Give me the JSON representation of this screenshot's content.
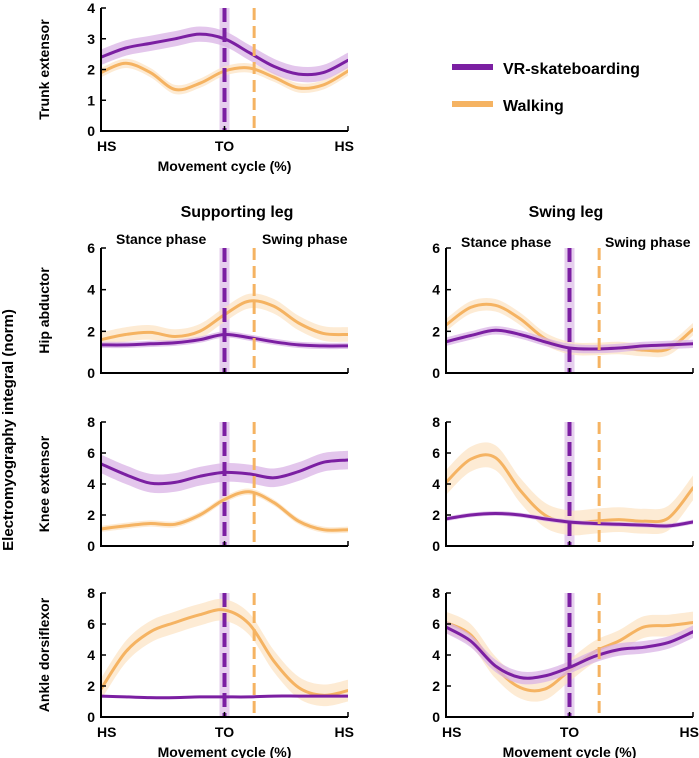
{
  "figure": {
    "y_axis_label": "Electromyography integral (norm)",
    "legend": [
      {
        "label": "VR-skateboarding",
        "color": "#7B1FA2"
      },
      {
        "label": "Walking",
        "color": "#F5B362"
      }
    ],
    "column_titles": [
      "Supporting leg",
      "Swing leg"
    ],
    "phase_labels": [
      "Stance phase",
      "Swing phase"
    ],
    "x_tick_labels": [
      "HS",
      "TO",
      "HS"
    ],
    "x_axis_label": "Movement cycle (%)",
    "colors": {
      "skate": "#7B1FA2",
      "skate_band": "#D9B3E6",
      "walk": "#F5B362",
      "walk_band": "#FCE3C2",
      "skate_to_band": "#E6CFEE"
    }
  },
  "chart_data": [
    {
      "id": "trunk",
      "type": "line",
      "title": "Trunk extensor",
      "xlabel": "Movement cycle (%)",
      "xlim": [
        0,
        100
      ],
      "ylim": [
        0,
        4
      ],
      "yticks": [
        0,
        1,
        2,
        3,
        4
      ],
      "x": [
        0,
        10,
        20,
        30,
        40,
        50,
        60,
        70,
        80,
        90,
        100
      ],
      "to_skate": 50,
      "to_walk": 62,
      "series": [
        {
          "name": "VR-skateboarding",
          "values": [
            2.4,
            2.7,
            2.85,
            3.0,
            3.15,
            3.0,
            2.55,
            2.1,
            1.85,
            1.9,
            2.3
          ],
          "sd": 0.25
        },
        {
          "name": "Walking",
          "values": [
            1.9,
            2.2,
            1.9,
            1.35,
            1.55,
            1.95,
            2.05,
            1.75,
            1.4,
            1.5,
            1.95
          ],
          "sd": 0.15
        }
      ]
    },
    {
      "id": "hip-sup",
      "type": "line",
      "title": "Hip abductor",
      "xlim": [
        0,
        100
      ],
      "ylim": [
        0,
        6
      ],
      "yticks": [
        0,
        2,
        4,
        6
      ],
      "x": [
        0,
        10,
        20,
        30,
        40,
        50,
        60,
        70,
        80,
        90,
        100
      ],
      "to_skate": 50,
      "to_walk": 62,
      "series": [
        {
          "name": "VR-skateboarding",
          "values": [
            1.35,
            1.35,
            1.4,
            1.45,
            1.6,
            1.85,
            1.7,
            1.5,
            1.35,
            1.3,
            1.3
          ],
          "sd": 0.15
        },
        {
          "name": "Walking",
          "values": [
            1.6,
            1.85,
            1.95,
            1.75,
            2.0,
            2.8,
            3.45,
            3.2,
            2.4,
            1.9,
            1.85
          ],
          "sd": 0.35
        }
      ]
    },
    {
      "id": "hip-swing",
      "type": "line",
      "title": "",
      "xlim": [
        0,
        100
      ],
      "ylim": [
        0,
        6
      ],
      "yticks": [
        0,
        2,
        4,
        6
      ],
      "x": [
        0,
        10,
        20,
        30,
        40,
        50,
        60,
        70,
        80,
        90,
        100
      ],
      "to_skate": 50,
      "to_walk": 62,
      "series": [
        {
          "name": "VR-skateboarding",
          "values": [
            1.5,
            1.8,
            2.05,
            1.85,
            1.5,
            1.2,
            1.15,
            1.2,
            1.3,
            1.35,
            1.4
          ],
          "sd": 0.2
        },
        {
          "name": "Walking",
          "values": [
            2.3,
            3.15,
            3.25,
            2.6,
            1.65,
            1.2,
            1.15,
            1.2,
            1.1,
            1.15,
            2.1
          ],
          "sd": 0.3
        }
      ]
    },
    {
      "id": "knee-sup",
      "type": "line",
      "title": "Knee extensor",
      "xlim": [
        0,
        100
      ],
      "ylim": [
        0,
        8
      ],
      "yticks": [
        0,
        2,
        4,
        6,
        8
      ],
      "x": [
        0,
        10,
        20,
        30,
        40,
        50,
        60,
        70,
        80,
        90,
        100
      ],
      "to_skate": 50,
      "to_walk": 62,
      "series": [
        {
          "name": "VR-skateboarding",
          "values": [
            5.3,
            4.6,
            4.05,
            4.1,
            4.5,
            4.75,
            4.65,
            4.4,
            4.8,
            5.4,
            5.55
          ],
          "sd": 0.6
        },
        {
          "name": "Walking",
          "values": [
            1.1,
            1.3,
            1.45,
            1.4,
            2.0,
            3.0,
            3.5,
            2.8,
            1.6,
            1.05,
            1.05
          ],
          "sd": 0.2
        }
      ]
    },
    {
      "id": "knee-swing",
      "type": "line",
      "title": "",
      "xlim": [
        0,
        100
      ],
      "ylim": [
        0,
        8
      ],
      "yticks": [
        0,
        2,
        4,
        6,
        8
      ],
      "x": [
        0,
        10,
        20,
        30,
        40,
        50,
        60,
        70,
        80,
        90,
        100
      ],
      "to_skate": 50,
      "to_walk": 62,
      "series": [
        {
          "name": "VR-skateboarding",
          "values": [
            1.75,
            2.0,
            2.1,
            2.0,
            1.75,
            1.55,
            1.45,
            1.4,
            1.35,
            1.3,
            1.55
          ],
          "sd": 0.15
        },
        {
          "name": "Walking",
          "values": [
            4.1,
            5.6,
            5.7,
            3.6,
            2.0,
            1.5,
            1.6,
            1.7,
            1.6,
            1.8,
            3.75
          ],
          "sd": 0.8
        }
      ]
    },
    {
      "id": "ankle-sup",
      "type": "line",
      "title": "Ankle dorsiflexor",
      "xlabel": "Movement cycle (%)",
      "xlim": [
        0,
        100
      ],
      "ylim": [
        0,
        8
      ],
      "yticks": [
        0,
        2,
        4,
        6,
        8
      ],
      "x": [
        0,
        10,
        20,
        30,
        40,
        50,
        60,
        70,
        80,
        90,
        100
      ],
      "to_skate": 50,
      "to_walk": 62,
      "series": [
        {
          "name": "VR-skateboarding",
          "values": [
            1.35,
            1.3,
            1.25,
            1.25,
            1.3,
            1.3,
            1.3,
            1.35,
            1.35,
            1.35,
            1.35
          ],
          "sd": 0.05
        },
        {
          "name": "Walking",
          "values": [
            1.8,
            4.2,
            5.5,
            6.1,
            6.6,
            6.9,
            6.0,
            3.6,
            1.9,
            1.4,
            1.7
          ],
          "sd": 0.7
        }
      ]
    },
    {
      "id": "ankle-swing",
      "type": "line",
      "title": "",
      "xlabel": "Movement cycle (%)",
      "xlim": [
        0,
        100
      ],
      "ylim": [
        0,
        8
      ],
      "yticks": [
        0,
        2,
        4,
        6,
        8
      ],
      "x": [
        0,
        10,
        20,
        30,
        40,
        50,
        60,
        70,
        80,
        90,
        100
      ],
      "to_skate": 50,
      "to_walk": 62,
      "series": [
        {
          "name": "VR-skateboarding",
          "values": [
            5.8,
            4.9,
            3.3,
            2.55,
            2.65,
            3.2,
            3.9,
            4.35,
            4.5,
            4.8,
            5.5
          ],
          "sd": 0.4
        },
        {
          "name": "Walking",
          "values": [
            6.1,
            5.3,
            3.2,
            1.9,
            1.8,
            3.0,
            4.2,
            4.9,
            5.8,
            5.9,
            6.1
          ],
          "sd": 0.7
        }
      ]
    }
  ]
}
